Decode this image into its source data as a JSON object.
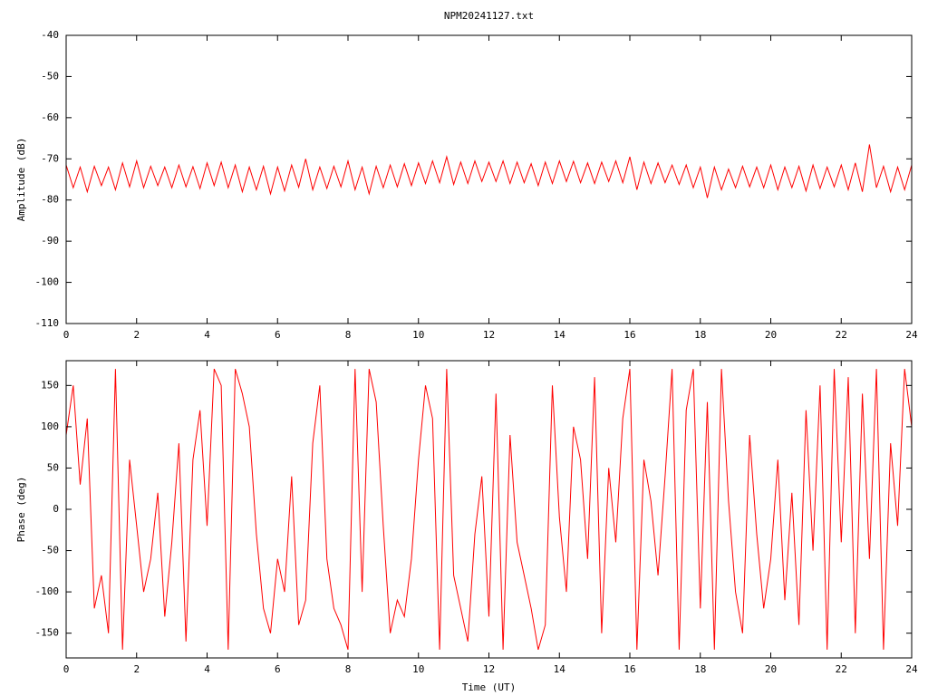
{
  "chart_data": [
    {
      "type": "line",
      "title": "NPM20241127.txt",
      "y_label": "Amplitude (dB)",
      "xlim": [
        0,
        24
      ],
      "xticks": [
        0,
        2,
        4,
        6,
        8,
        10,
        12,
        14,
        16,
        18,
        20,
        22,
        24
      ],
      "ylim": [
        -110,
        -40
      ],
      "yticks": [
        -40,
        -50,
        -60,
        -70,
        -80,
        -90,
        -100,
        -110
      ],
      "x": [
        0,
        0.2,
        0.4,
        0.6,
        0.8,
        1,
        1.2,
        1.4,
        1.6,
        1.8,
        2,
        2.2,
        2.4,
        2.6,
        2.8,
        3,
        3.2,
        3.4,
        3.6,
        3.8,
        4,
        4.2,
        4.4,
        4.6,
        4.8,
        5,
        5.2,
        5.4,
        5.6,
        5.8,
        6,
        6.2,
        6.4,
        6.6,
        6.8,
        7,
        7.2,
        7.4,
        7.6,
        7.8,
        8,
        8.2,
        8.4,
        8.6,
        8.8,
        9,
        9.2,
        9.4,
        9.6,
        9.8,
        10,
        10.2,
        10.4,
        10.6,
        10.8,
        11,
        11.2,
        11.4,
        11.6,
        11.8,
        12,
        12.2,
        12.4,
        12.6,
        12.8,
        13,
        13.2,
        13.4,
        13.6,
        13.8,
        14,
        14.2,
        14.4,
        14.6,
        14.8,
        15,
        15.2,
        15.4,
        15.6,
        15.8,
        16,
        16.2,
        16.4,
        16.6,
        16.8,
        17,
        17.2,
        17.4,
        17.6,
        17.8,
        18,
        18.2,
        18.4,
        18.6,
        18.8,
        19,
        19.2,
        19.4,
        19.6,
        19.8,
        20,
        20.2,
        20.4,
        20.6,
        20.8,
        21,
        21.2,
        21.4,
        21.6,
        21.8,
        22,
        22.2,
        22.4,
        22.6,
        22.8,
        23,
        23.2,
        23.4,
        23.6,
        23.8,
        24
      ],
      "series": [
        {
          "color": "#ff0000",
          "values": [
            -71.5,
            -77,
            -72,
            -78,
            -71.8,
            -76.5,
            -72,
            -77.5,
            -71,
            -76.8,
            -70.5,
            -77,
            -71.8,
            -76.5,
            -72,
            -77,
            -71.5,
            -76.8,
            -71.9,
            -77.2,
            -71,
            -76.5,
            -70.8,
            -77,
            -71.5,
            -78,
            -72,
            -77.5,
            -71.8,
            -78.5,
            -72,
            -77.8,
            -71.5,
            -76.9,
            -70,
            -77.5,
            -72,
            -77.2,
            -71.8,
            -76.8,
            -70.5,
            -77.5,
            -72,
            -78.5,
            -71.8,
            -77,
            -71.5,
            -76.8,
            -71.2,
            -76.5,
            -71,
            -76,
            -70.5,
            -75.8,
            -69.5,
            -76.2,
            -70.8,
            -76,
            -70.5,
            -75.5,
            -70.8,
            -75.5,
            -70.5,
            -76,
            -70.8,
            -75.8,
            -71.2,
            -76.5,
            -70.8,
            -76,
            -70.5,
            -75.5,
            -70.6,
            -75.8,
            -71,
            -76,
            -70.8,
            -75.5,
            -70.5,
            -75.8,
            -69.5,
            -77.5,
            -70.8,
            -76,
            -71,
            -75.8,
            -71.5,
            -76.2,
            -71.5,
            -77,
            -72,
            -79.5,
            -72,
            -77.5,
            -72.5,
            -77,
            -71.8,
            -76.8,
            -72,
            -77,
            -71.5,
            -77.5,
            -72,
            -77,
            -71.8,
            -77.8,
            -71.5,
            -77.2,
            -72,
            -76.8,
            -71.5,
            -77.5,
            -71,
            -78,
            -66.5,
            -77,
            -71.8,
            -78,
            -72,
            -77.5,
            -71.5
          ]
        }
      ]
    },
    {
      "type": "line",
      "x_label": "Time (UT)",
      "y_label": "Phase (deg)",
      "xlim": [
        0,
        24
      ],
      "xticks": [
        0,
        2,
        4,
        6,
        8,
        10,
        12,
        14,
        16,
        18,
        20,
        22,
        24
      ],
      "ylim": [
        -180,
        180
      ],
      "yticks": [
        150,
        100,
        50,
        0,
        -50,
        -100,
        -150
      ],
      "x": [
        0,
        0.2,
        0.4,
        0.6,
        0.8,
        1,
        1.2,
        1.4,
        1.6,
        1.8,
        2,
        2.2,
        2.4,
        2.6,
        2.8,
        3,
        3.2,
        3.4,
        3.6,
        3.8,
        4,
        4.2,
        4.4,
        4.6,
        4.8,
        5,
        5.2,
        5.4,
        5.6,
        5.8,
        6,
        6.2,
        6.4,
        6.6,
        6.8,
        7,
        7.2,
        7.4,
        7.6,
        7.8,
        8,
        8.2,
        8.4,
        8.6,
        8.8,
        9,
        9.2,
        9.4,
        9.6,
        9.8,
        10,
        10.2,
        10.4,
        10.6,
        10.8,
        11,
        11.2,
        11.4,
        11.6,
        11.8,
        12,
        12.2,
        12.4,
        12.6,
        12.8,
        13,
        13.2,
        13.4,
        13.6,
        13.8,
        14,
        14.2,
        14.4,
        14.6,
        14.8,
        15,
        15.2,
        15.4,
        15.6,
        15.8,
        16,
        16.2,
        16.4,
        16.6,
        16.8,
        17,
        17.2,
        17.4,
        17.6,
        17.8,
        18,
        18.2,
        18.4,
        18.6,
        18.8,
        19,
        19.2,
        19.4,
        19.6,
        19.8,
        20,
        20.2,
        20.4,
        20.6,
        20.8,
        21,
        21.2,
        21.4,
        21.6,
        21.8,
        22,
        22.2,
        22.4,
        22.6,
        22.8,
        23,
        23.2,
        23.4,
        23.6,
        23.8,
        24
      ],
      "series": [
        {
          "color": "#ff0000",
          "values": [
            90,
            150,
            30,
            110,
            -120,
            -80,
            -150,
            170,
            -170,
            60,
            -20,
            -100,
            -60,
            20,
            -130,
            -40,
            80,
            -160,
            60,
            120,
            -20,
            170,
            150,
            -170,
            170,
            140,
            100,
            -30,
            -120,
            -150,
            -60,
            -100,
            40,
            -140,
            -110,
            80,
            150,
            -60,
            -120,
            -140,
            -170,
            170,
            -100,
            170,
            130,
            -20,
            -150,
            -110,
            -130,
            -60,
            60,
            150,
            110,
            -170,
            170,
            -80,
            -120,
            -160,
            -30,
            40,
            -130,
            140,
            -170,
            90,
            -40,
            -80,
            -120,
            -170,
            -140,
            150,
            -10,
            -100,
            100,
            60,
            -60,
            160,
            -150,
            50,
            -40,
            110,
            170,
            -170,
            60,
            10,
            -80,
            40,
            170,
            -170,
            120,
            170,
            -120,
            130,
            -170,
            170,
            10,
            -100,
            -150,
            90,
            -30,
            -120,
            -60,
            60,
            -110,
            20,
            -140,
            120,
            -50,
            150,
            -170,
            170,
            -40,
            160,
            -150,
            140,
            -60,
            170,
            -170,
            80,
            -20,
            170,
            100
          ]
        }
      ]
    }
  ]
}
